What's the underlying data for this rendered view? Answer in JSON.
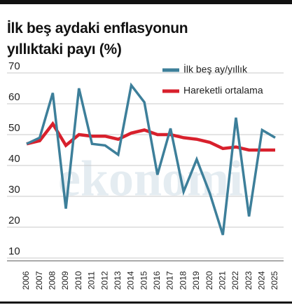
{
  "chart_data": {
    "type": "line",
    "title": "İlk beş aydaki enflasyonun yıllıktaki payı (%)",
    "watermark": "ekonomi",
    "categories": [
      "2006",
      "2007",
      "2008",
      "2009",
      "2010",
      "2011",
      "2012",
      "2013",
      "2014",
      "2015",
      "2016",
      "2017",
      "2018",
      "2019",
      "2020",
      "2021",
      "2022",
      "2023",
      "2024",
      "2025"
    ],
    "series": [
      {
        "name": "İlk beş ay/yıllık",
        "color": "#3d7f9a",
        "values": [
          47,
          49,
          63.5,
          26,
          65,
          47,
          46.5,
          43.5,
          66,
          60.5,
          37,
          52,
          31.5,
          42,
          31,
          17.5,
          55.5,
          23.5,
          51.5,
          49
        ]
      },
      {
        "name": "Hareketli ortalama",
        "color": "#d8202c",
        "values": [
          47,
          48,
          53.5,
          46.5,
          50,
          49.5,
          49.5,
          48.5,
          50.5,
          51.5,
          50,
          50,
          49,
          48.5,
          47.5,
          45.5,
          46,
          45,
          45,
          45
        ]
      }
    ],
    "ylim": [
      10,
      70
    ],
    "yticks": [
      10,
      20,
      30,
      40,
      50,
      60,
      70
    ],
    "grid": true,
    "legend": "top-right"
  }
}
